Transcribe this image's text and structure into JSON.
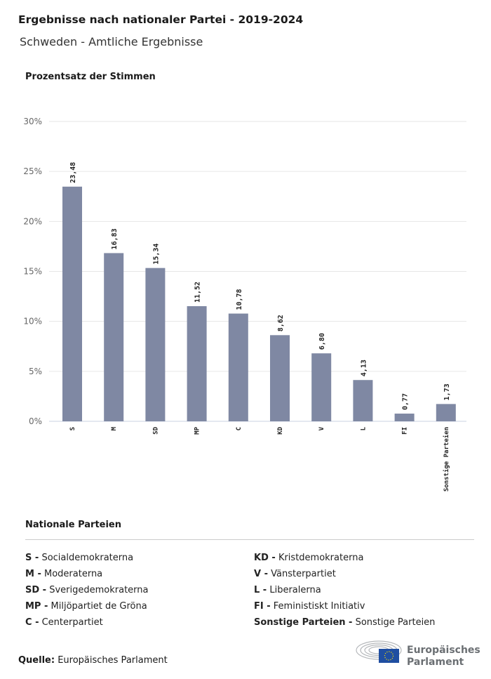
{
  "header": {
    "title": "Ergebnisse nach nationaler Partei - 2019-2024",
    "subtitle": "Schweden - Amtliche Ergebnisse"
  },
  "chart_data": {
    "type": "bar",
    "title": "Ergebnisse nach nationaler Partei - 2019-2024",
    "ylabel": "Prozentsatz der Stimmen",
    "xlabel": "",
    "categories": [
      "S",
      "M",
      "SD",
      "MP",
      "C",
      "KD",
      "V",
      "L",
      "FI",
      "Sonstige Parteien"
    ],
    "values": [
      23.48,
      16.83,
      15.34,
      11.52,
      10.78,
      8.62,
      6.8,
      4.13,
      0.77,
      1.73
    ],
    "value_labels": [
      "23,48",
      "16,83",
      "15,34",
      "11,52",
      "10,78",
      "8,62",
      "6,80",
      "4,13",
      "0,77",
      "1,73"
    ],
    "ylim": [
      0,
      30
    ],
    "yticks": [
      0,
      5,
      10,
      15,
      20,
      25,
      30
    ],
    "ytick_labels": [
      "0%",
      "5%",
      "10%",
      "15%",
      "20%",
      "25%",
      "30%"
    ],
    "grid": true,
    "bar_color": "#7f88a3"
  },
  "legend": {
    "title": "Nationale Parteien",
    "items": [
      {
        "abbr": "S -",
        "name": "Socialdemokraterna"
      },
      {
        "abbr": "M -",
        "name": "Moderaterna"
      },
      {
        "abbr": "SD -",
        "name": "Sverigedemokraterna"
      },
      {
        "abbr": "MP -",
        "name": "Miljöpartiet de Gröna"
      },
      {
        "abbr": "C -",
        "name": "Centerpartiet"
      },
      {
        "abbr": "KD -",
        "name": "Kristdemokraterna"
      },
      {
        "abbr": "V -",
        "name": "Vänsterpartiet"
      },
      {
        "abbr": "L -",
        "name": "Liberalerna"
      },
      {
        "abbr": "FI -",
        "name": "Feministiskt Initiativ"
      },
      {
        "abbr": "Sonstige Parteien -",
        "name": "Sonstige Parteien"
      }
    ]
  },
  "footer": {
    "source_label": "Quelle:",
    "source": "Europäisches Parlament",
    "logo_line1": "Europäisches",
    "logo_line2": "Parlament"
  }
}
